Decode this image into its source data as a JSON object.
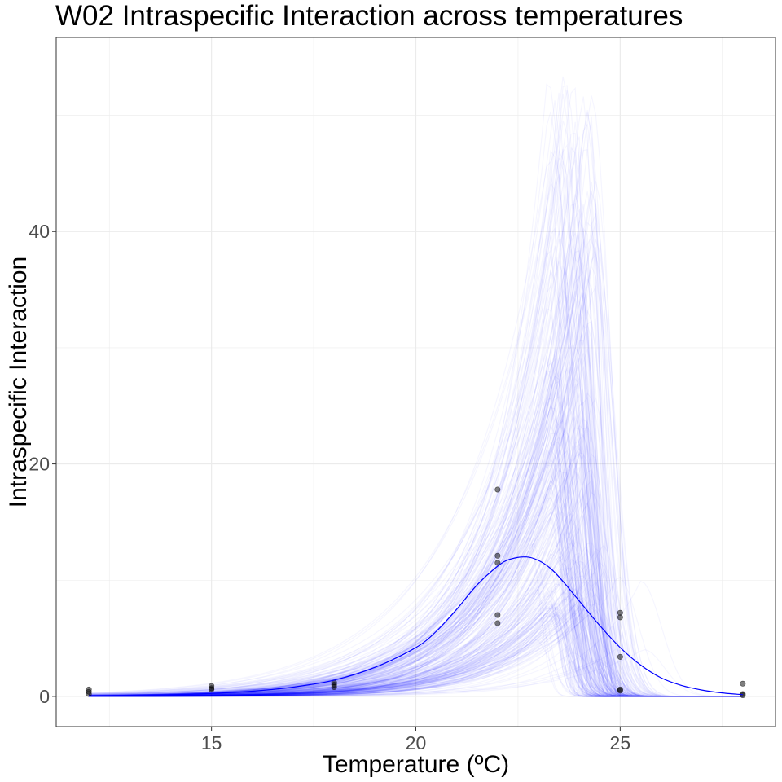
{
  "chart_data": {
    "type": "line",
    "title": "W02 Intraspecific Interaction across temperatures",
    "xlabel": "Temperature (ºC)",
    "ylabel": "Intraspecific Interaction",
    "xlim": [
      11.2,
      28.8
    ],
    "ylim": [
      -2.6,
      56.7
    ],
    "x_ticks": [
      15,
      20,
      25
    ],
    "x_tick_labels": [
      "15",
      "20",
      "25"
    ],
    "y_ticks": [
      0,
      20,
      40
    ],
    "y_tick_labels": [
      "0",
      "20",
      "40"
    ],
    "grid": true,
    "legend": "none",
    "colors": {
      "fit_line": "#0000ff",
      "sample_lines": "#0000ff",
      "points": "#000000",
      "grid": "#ebebeb",
      "panel_border": "#333333"
    },
    "observed_points": [
      {
        "x": 12,
        "y": 0.6
      },
      {
        "x": 12,
        "y": 0.4
      },
      {
        "x": 12,
        "y": 0.2
      },
      {
        "x": 15,
        "y": 0.9
      },
      {
        "x": 15,
        "y": 0.7
      },
      {
        "x": 15,
        "y": 0.6
      },
      {
        "x": 18,
        "y": 1.2
      },
      {
        "x": 18,
        "y": 1.0
      },
      {
        "x": 18,
        "y": 0.8
      },
      {
        "x": 22,
        "y": 17.8
      },
      {
        "x": 22,
        "y": 12.1
      },
      {
        "x": 22,
        "y": 11.5
      },
      {
        "x": 22,
        "y": 7.0
      },
      {
        "x": 22,
        "y": 6.3
      },
      {
        "x": 25,
        "y": 7.2
      },
      {
        "x": 25,
        "y": 6.8
      },
      {
        "x": 25,
        "y": 3.4
      },
      {
        "x": 25,
        "y": 0.6
      },
      {
        "x": 25,
        "y": 0.5
      },
      {
        "x": 28,
        "y": 1.1
      },
      {
        "x": 28,
        "y": 0.2
      },
      {
        "x": 28,
        "y": 0.1
      }
    ],
    "fit_curve": {
      "x": [
        12,
        13,
        14,
        15,
        16,
        17,
        18,
        19,
        20,
        20.5,
        21,
        21.5,
        22,
        22.3,
        22.7,
        23,
        23.3,
        23.6,
        24,
        24.5,
        25,
        25.5,
        26,
        26.5,
        27,
        27.5,
        28
      ],
      "y": [
        0.0,
        0.1,
        0.15,
        0.25,
        0.45,
        0.8,
        1.4,
        2.5,
        4.2,
        5.6,
        7.5,
        9.6,
        11.2,
        11.8,
        12.0,
        11.7,
        11.0,
        9.9,
        8.2,
        6.1,
        4.2,
        2.7,
        1.6,
        0.95,
        0.55,
        0.3,
        0.15
      ]
    },
    "posterior_samples": {
      "count": 300,
      "description": "",
      "peak_temperature_range": [
        22.4,
        25.6
      ],
      "peak_value_range": [
        7,
        54
      ]
    }
  }
}
